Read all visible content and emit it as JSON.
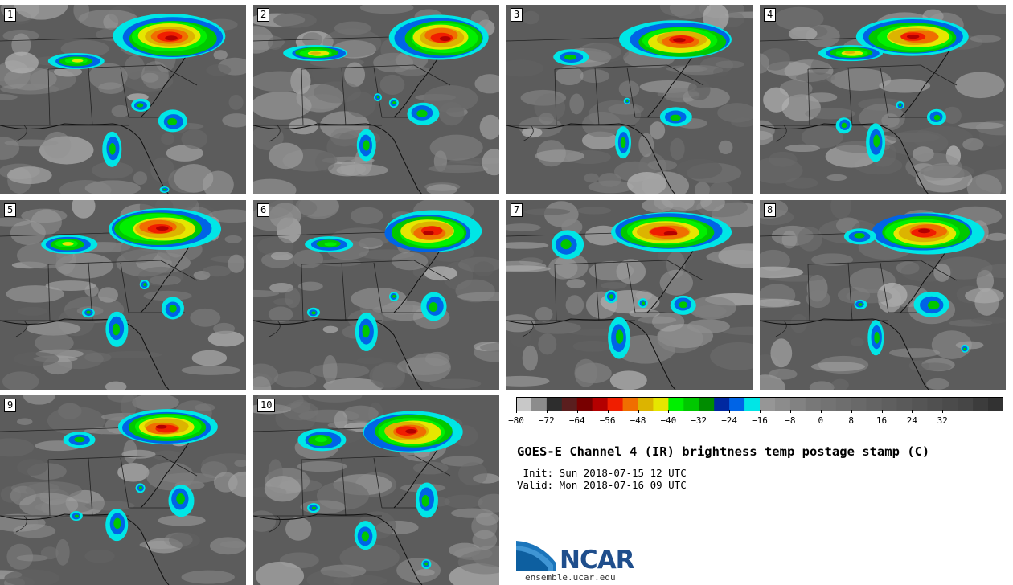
{
  "panels": [
    {
      "label": "1"
    },
    {
      "label": "2"
    },
    {
      "label": "3"
    },
    {
      "label": "4"
    },
    {
      "label": "5"
    },
    {
      "label": "6"
    },
    {
      "label": "7"
    },
    {
      "label": "8"
    },
    {
      "label": "9"
    },
    {
      "label": "10"
    }
  ],
  "colorbar": {
    "colors": [
      "#c8c8c8",
      "#8c8c8c",
      "#2d2d2d",
      "#5a1e1e",
      "#780000",
      "#b40000",
      "#f01e00",
      "#f06e00",
      "#dcb400",
      "#e6e600",
      "#00f000",
      "#00c800",
      "#008c00",
      "#0028a0",
      "#0064e6",
      "#00e6e6",
      "#969696",
      "#8c8c8c",
      "#828282",
      "#787878",
      "#737373",
      "#6e6e6e",
      "#696969",
      "#646464",
      "#5f5f5f",
      "#5a5a5a",
      "#555555",
      "#505050",
      "#4b4b4b",
      "#464646",
      "#3c3c3c",
      "#323232"
    ],
    "tick_labels": [
      "-80",
      "-72",
      "-64",
      "-56",
      "-48",
      "-40",
      "-32",
      "-24",
      "-16",
      "-8",
      "0",
      "8",
      "16",
      "24",
      "32"
    ]
  },
  "title": "GOES-E Channel 4 (IR) brightness temp postage stamp (C)",
  "init_line": " Init: Sun 2018-07-15 12 UTC",
  "valid_line": "Valid: Mon 2018-07-16 09 UTC",
  "logo": {
    "text": "NCAR",
    "url": "ensemble.ucar.edu",
    "icon": "ncar-swoosh-icon"
  }
}
